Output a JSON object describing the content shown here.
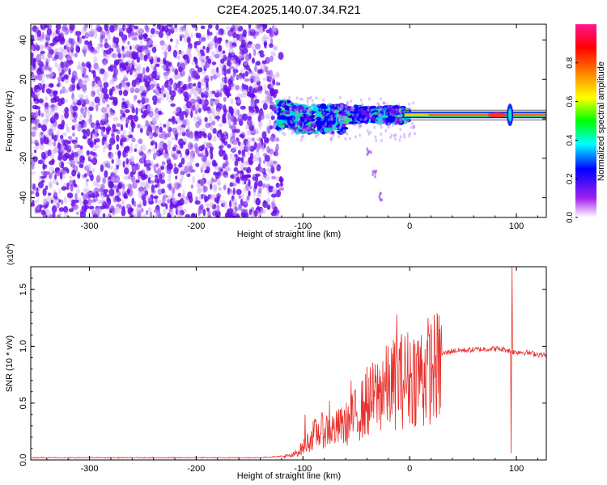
{
  "title": "C2E4.2025.140.07.34.R21",
  "chart_data": [
    {
      "type": "heatmap",
      "title": "C2E4.2025.140.07.34.R21",
      "xlabel": "Height of straight line (km)",
      "ylabel": "Frequency (Hz)",
      "xlim": [
        -355,
        128
      ],
      "ylim": [
        -50,
        48
      ],
      "x_ticks": [
        -300,
        -200,
        -100,
        0,
        100
      ],
      "y_ticks": [
        -40,
        -20,
        0,
        20,
        40
      ],
      "x_tick_labels": [
        "-300",
        "-200",
        "-100",
        "0",
        "100"
      ],
      "y_tick_labels": [
        "-40",
        "-20",
        "0",
        "20",
        "40"
      ],
      "colorbar": {
        "label": "Normalized spectral amplitude",
        "range": [
          0,
          1
        ],
        "ticks": [
          0.0,
          0.2,
          0.4,
          0.6,
          0.8
        ],
        "tick_labels": [
          "0.0",
          "0.2",
          "0.4",
          "0.6",
          "0.8"
        ],
        "colors": [
          "#ffffff",
          "#a020f0",
          "#0000ff",
          "#00ffff",
          "#00ff00",
          "#ffff00",
          "#ff8000",
          "#ff0000",
          "#ff1493"
        ]
      },
      "features": {
        "noise_region_x": [
          -355,
          -122
        ],
        "signal_line_x": [
          -5,
          128
        ],
        "signal_line_freq": 2,
        "tail_points": [
          [
            -38,
            -16
          ],
          [
            -33,
            -28
          ],
          [
            -28,
            -40
          ]
        ]
      }
    },
    {
      "type": "line",
      "xlabel": "Height of straight line (km)",
      "ylabel": "SNR (10 * v/v)",
      "y_scale_label": "(x10",
      "y_scale_exp": "4",
      "y_scale_close": ")",
      "xlim": [
        -355,
        128
      ],
      "ylim": [
        0,
        1.7
      ],
      "x_ticks": [
        -300,
        -200,
        -100,
        0,
        100
      ],
      "y_ticks": [
        0.0,
        0.5,
        1.0,
        1.5
      ],
      "x_tick_labels": [
        "-300",
        "-200",
        "-100",
        "0",
        "100"
      ],
      "y_tick_labels": [
        "0.0",
        "0.5",
        "1.0",
        "1.5"
      ],
      "color": "#e8302b",
      "envelope": [
        [
          -355,
          0.02
        ],
        [
          -140,
          0.02
        ],
        [
          -110,
          0.04
        ],
        [
          -100,
          0.12
        ],
        [
          -90,
          0.25
        ],
        [
          -80,
          0.3
        ],
        [
          -70,
          0.3
        ],
        [
          -60,
          0.35
        ],
        [
          -50,
          0.45
        ],
        [
          -40,
          0.55
        ],
        [
          -30,
          0.65
        ],
        [
          -20,
          0.72
        ],
        [
          -10,
          0.78
        ],
        [
          0,
          0.82
        ],
        [
          20,
          0.9
        ],
        [
          30,
          0.93
        ],
        [
          40,
          0.96
        ],
        [
          60,
          0.97
        ],
        [
          80,
          0.98
        ],
        [
          90,
          0.97
        ],
        [
          97,
          0.95
        ],
        [
          105,
          0.95
        ],
        [
          128,
          0.92
        ]
      ],
      "spikes": [
        [
          -98,
          0.4
        ],
        [
          -75,
          0.52
        ],
        [
          -65,
          0.44
        ],
        [
          -55,
          0.7
        ],
        [
          -40,
          0.82
        ],
        [
          -25,
          0.87
        ],
        [
          -12,
          1.28
        ],
        [
          -10,
          0.98
        ],
        [
          5,
          1.02
        ],
        [
          13,
          0.3
        ],
        [
          96,
          1.7
        ],
        [
          95,
          0.06
        ]
      ]
    }
  ]
}
